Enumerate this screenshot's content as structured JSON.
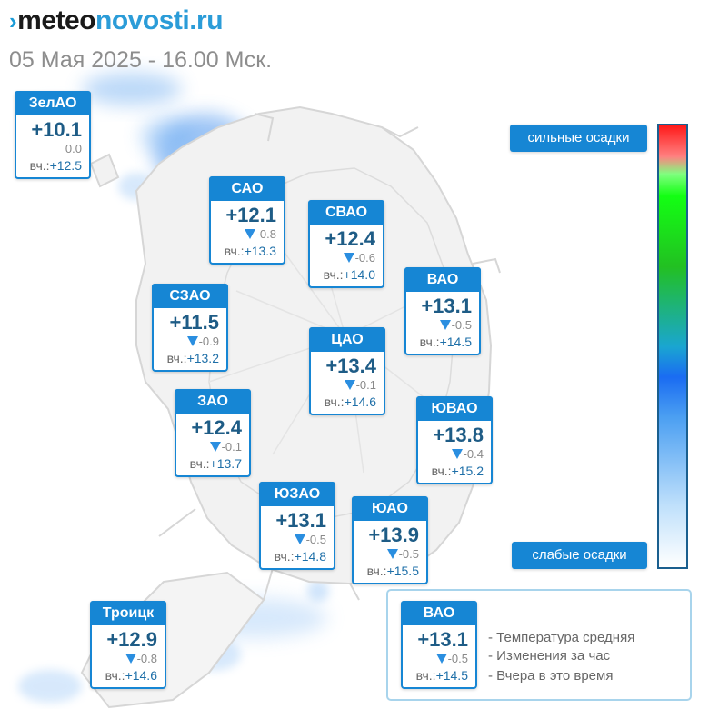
{
  "header": {
    "logo_mark": "›",
    "logo_main": "meteo",
    "logo_accent": "novosti.ru",
    "datetime": "05 Мая 2025 - 16.00 Мск."
  },
  "colors": {
    "card_header": "#1686d4",
    "temp_text": "#1e5c86",
    "trend_arrow": "#2a8ee0",
    "boundary_line": "#d6d6d6"
  },
  "districts": [
    {
      "name": "ЗелАО",
      "temp": "+10.1",
      "change": "0.0",
      "trend": "none",
      "yesterday_label": "вч.:",
      "yesterday": "+12.5"
    },
    {
      "name": "САО",
      "temp": "+12.1",
      "change": "-0.8",
      "trend": "down",
      "yesterday_label": "вч.:",
      "yesterday": "+13.3"
    },
    {
      "name": "СВАО",
      "temp": "+12.4",
      "change": "-0.6",
      "trend": "down",
      "yesterday_label": "вч.:",
      "yesterday": "+14.0"
    },
    {
      "name": "ВАО",
      "temp": "+13.1",
      "change": "-0.5",
      "trend": "down",
      "yesterday_label": "вч.:",
      "yesterday": "+14.5"
    },
    {
      "name": "СЗАО",
      "temp": "+11.5",
      "change": "-0.9",
      "trend": "down",
      "yesterday_label": "вч.:",
      "yesterday": "+13.2"
    },
    {
      "name": "ЦАО",
      "temp": "+13.4",
      "change": "-0.1",
      "trend": "down",
      "yesterday_label": "вч.:",
      "yesterday": "+14.6"
    },
    {
      "name": "ЗАО",
      "temp": "+12.4",
      "change": "-0.1",
      "trend": "down",
      "yesterday_label": "вч.:",
      "yesterday": "+13.7"
    },
    {
      "name": "ЮВАО",
      "temp": "+13.8",
      "change": "-0.4",
      "trend": "down",
      "yesterday_label": "вч.:",
      "yesterday": "+15.2"
    },
    {
      "name": "ЮЗАО",
      "temp": "+13.1",
      "change": "-0.5",
      "trend": "down",
      "yesterday_label": "вч.:",
      "yesterday": "+14.8"
    },
    {
      "name": "ЮАО",
      "temp": "+13.9",
      "change": "-0.5",
      "trend": "down",
      "yesterday_label": "вч.:",
      "yesterday": "+15.5"
    },
    {
      "name": "Троицк",
      "temp": "+12.9",
      "change": "-0.8",
      "trend": "down",
      "yesterday_label": "вч.:",
      "yesterday": "+14.6"
    }
  ],
  "precip_scale": {
    "strong_label": "сильные осадки",
    "weak_label": "слабые осадки"
  },
  "legend": {
    "sample": {
      "name": "ВАО",
      "temp": "+13.1",
      "change": "-0.5",
      "trend": "down",
      "yesterday_label": "вч.:",
      "yesterday": "+14.5"
    },
    "items": [
      "- Температура средняя",
      "- Изменения за час",
      "- Вчера в это время"
    ]
  }
}
